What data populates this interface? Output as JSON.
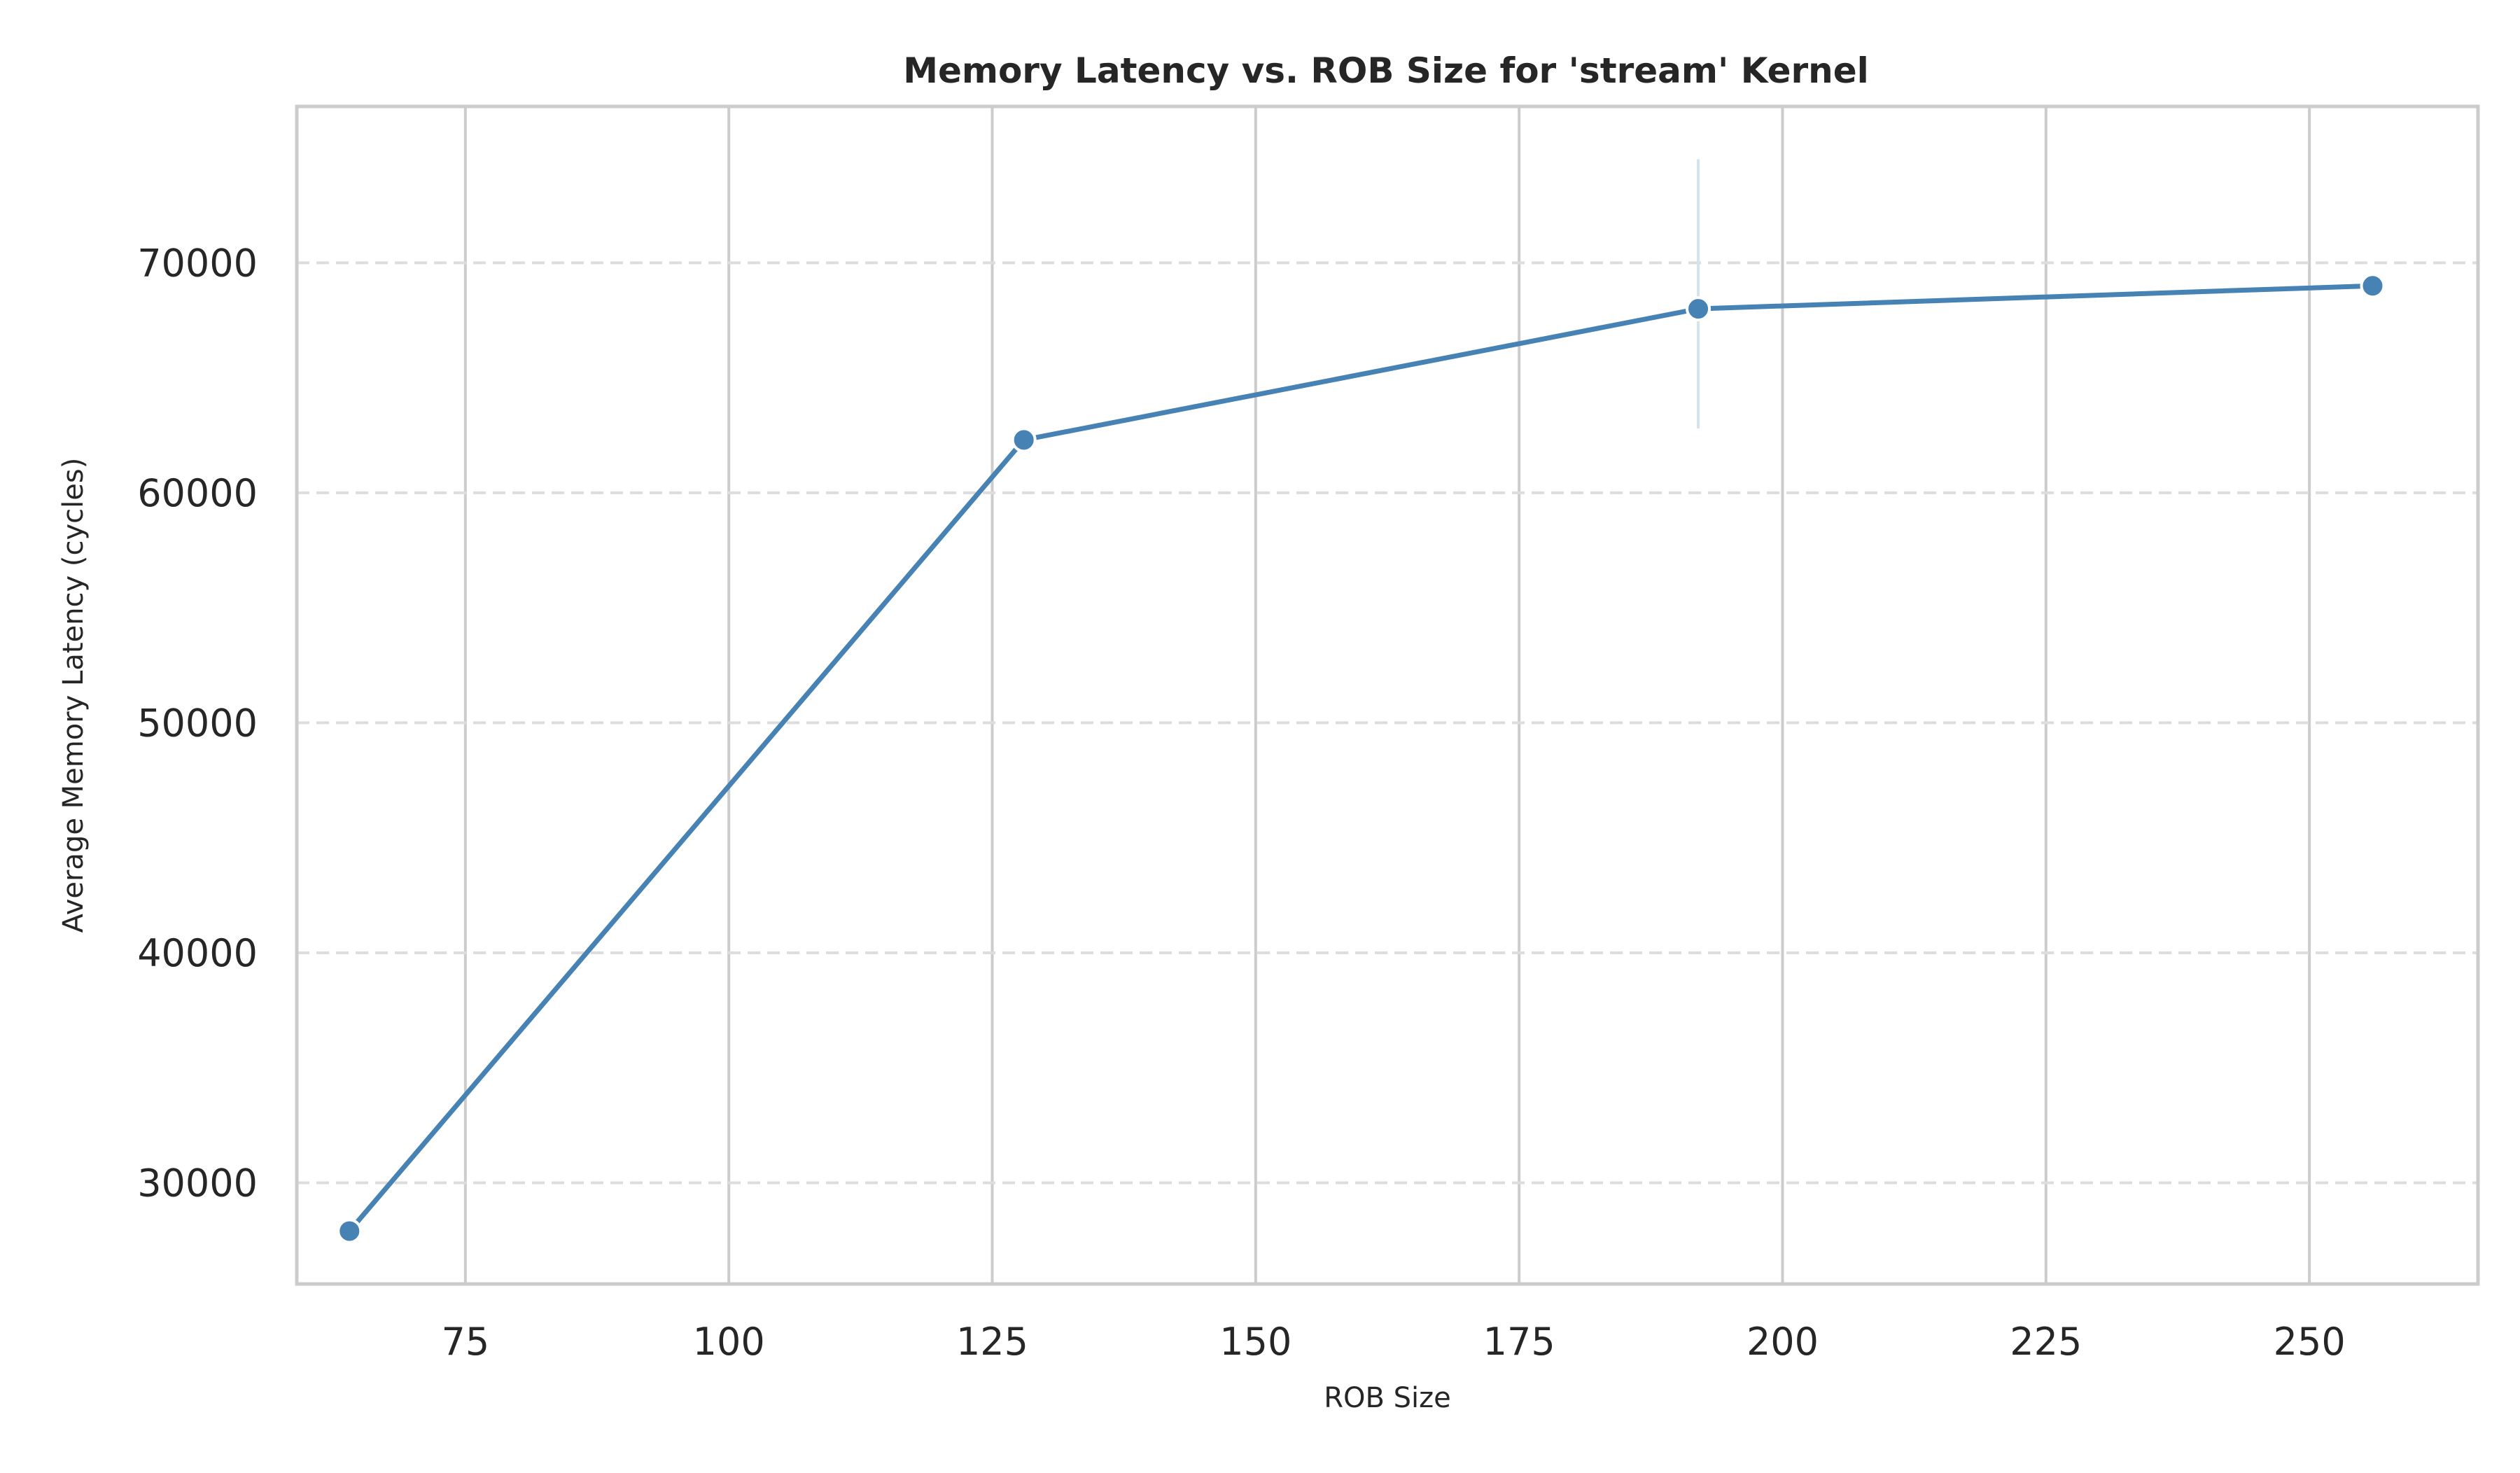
{
  "chart_data": {
    "type": "line",
    "title": "Memory Latency vs. ROB Size for 'stream' Kernel",
    "xlabel": "ROB Size",
    "ylabel": "Average Memory Latency (cycles)",
    "xlim": [
      59,
      266
    ],
    "ylim": [
      25600,
      76800
    ],
    "xticks": [
      75,
      100,
      125,
      150,
      175,
      200,
      225,
      250
    ],
    "yticks": [
      30000,
      40000,
      50000,
      60000,
      70000
    ],
    "grid": {
      "vertical": "solid",
      "horizontal": "dashed"
    },
    "x": [
      64,
      128,
      192,
      256
    ],
    "series": [
      {
        "values": [
          27900,
          62300,
          68000,
          69000
        ],
        "error_bars": [
          null,
          null,
          [
            62800,
            74500
          ],
          null
        ],
        "color": "#4682b4"
      }
    ]
  }
}
